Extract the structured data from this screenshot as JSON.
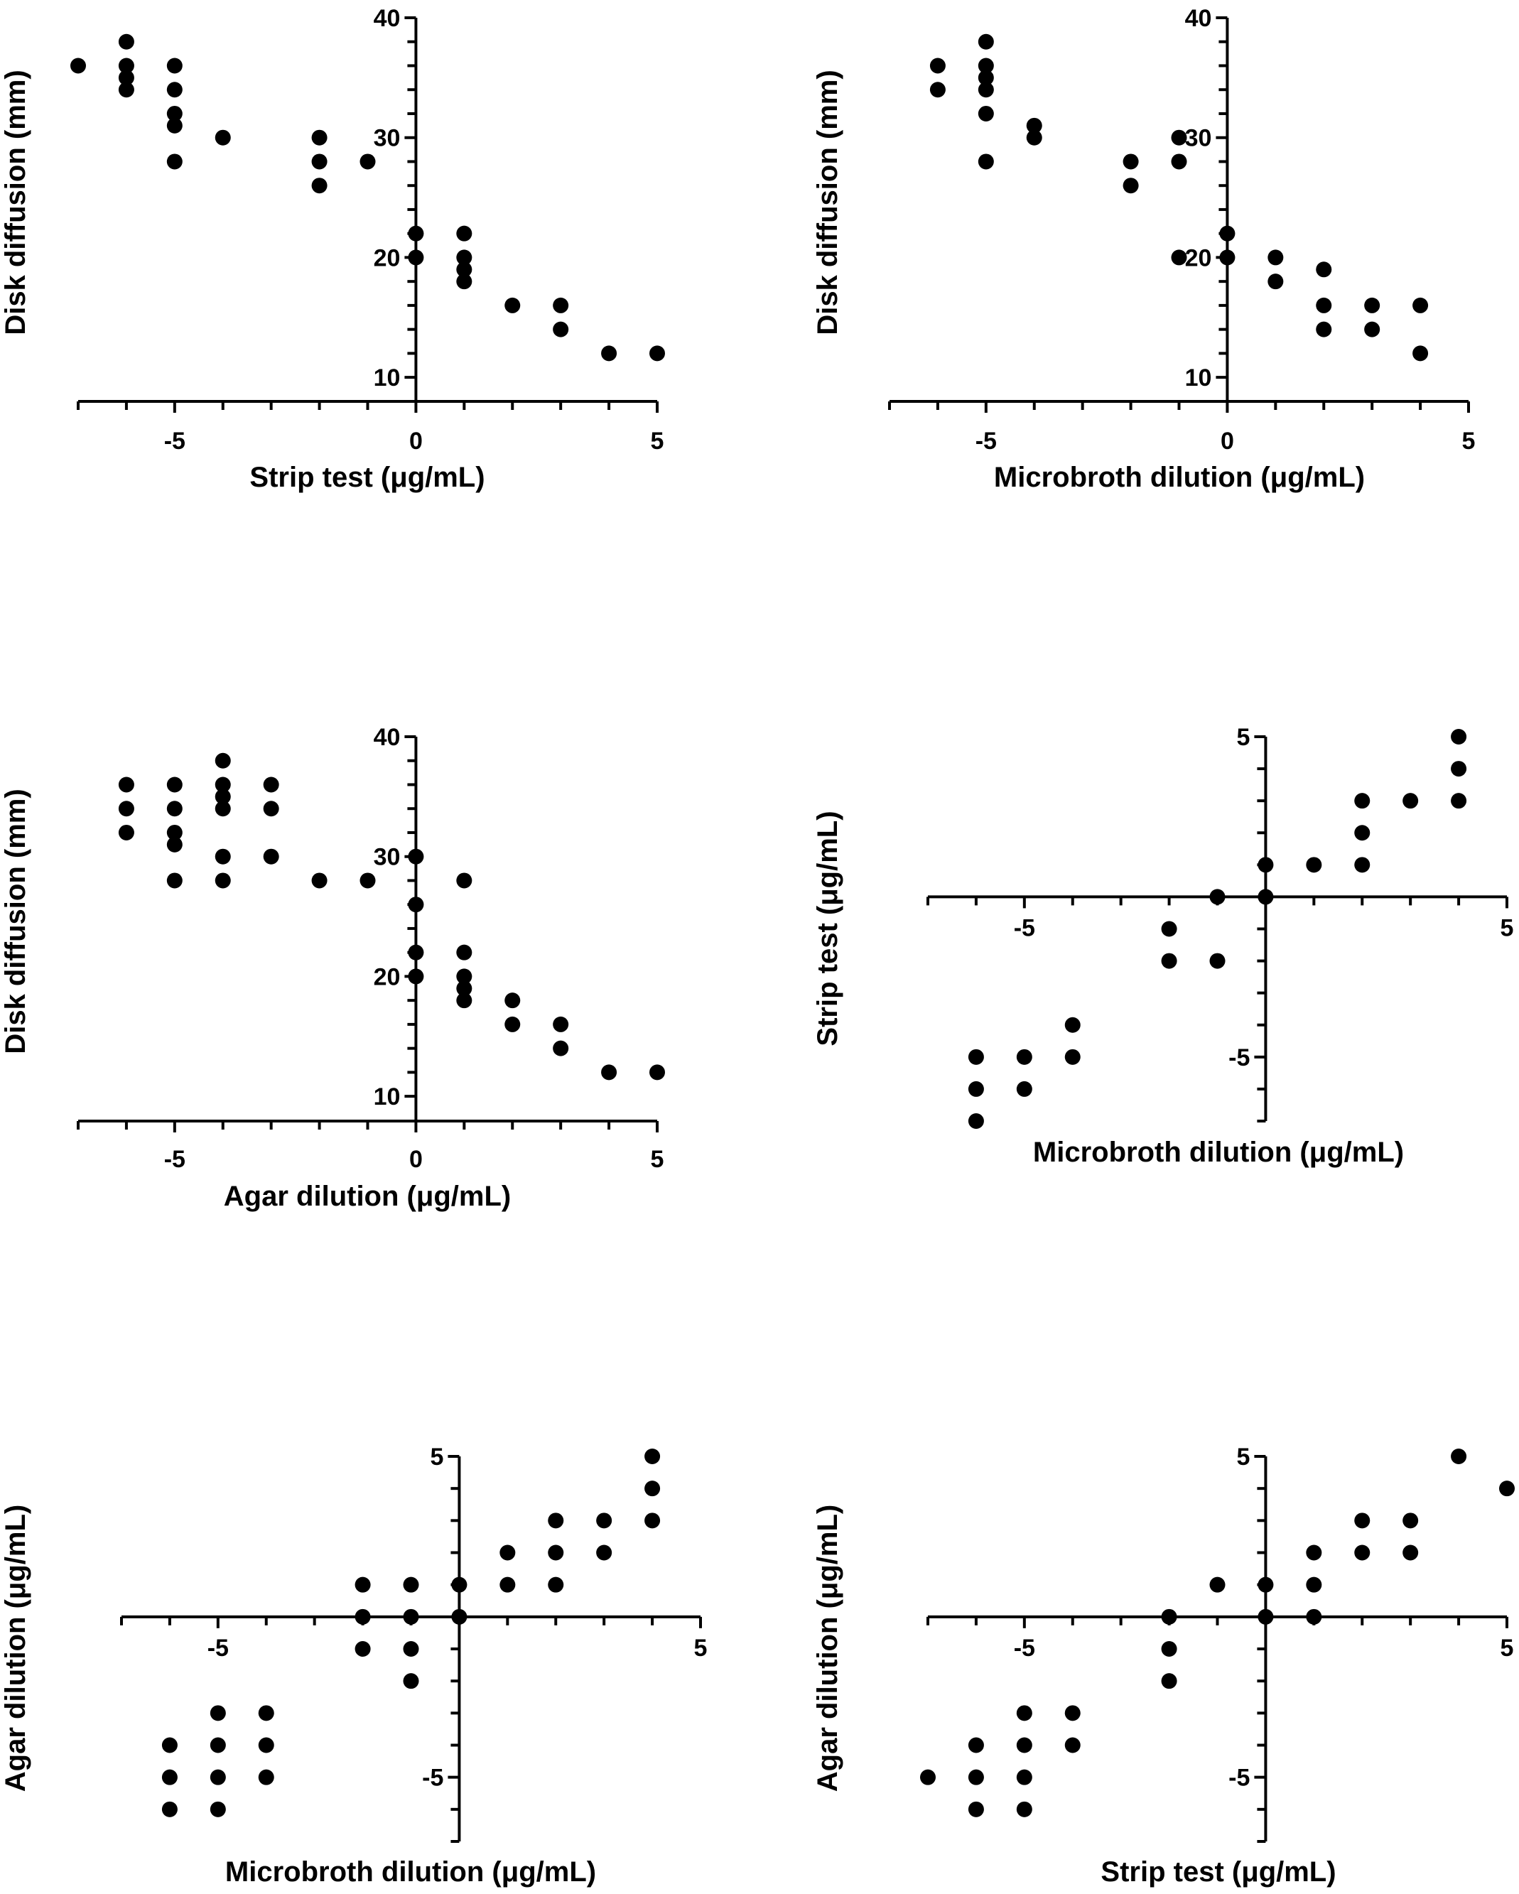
{
  "chart_data": [
    {
      "type": "scatter",
      "title": "",
      "xlabel": "Strip test (μg/mL)",
      "ylabel": "Disk diffusion (mm)",
      "xlim": [
        -7,
        5
      ],
      "ylim": [
        9,
        40
      ],
      "xticks": [
        -5,
        0,
        5
      ],
      "yticks": [
        10,
        20,
        30,
        40
      ],
      "points": [
        [
          -7,
          36
        ],
        [
          -6,
          38
        ],
        [
          -6,
          36
        ],
        [
          -6,
          35
        ],
        [
          -6,
          34
        ],
        [
          -5,
          36
        ],
        [
          -5,
          34
        ],
        [
          -5,
          32
        ],
        [
          -5,
          31
        ],
        [
          -5,
          28
        ],
        [
          -4,
          30
        ],
        [
          -2,
          30
        ],
        [
          -2,
          28
        ],
        [
          -2,
          26
        ],
        [
          -1,
          28
        ],
        [
          0,
          22
        ],
        [
          0,
          20
        ],
        [
          1,
          22
        ],
        [
          1,
          20
        ],
        [
          1,
          19
        ],
        [
          1,
          18
        ],
        [
          2,
          16
        ],
        [
          3,
          16
        ],
        [
          3,
          14
        ],
        [
          4,
          12
        ],
        [
          5,
          12
        ]
      ]
    },
    {
      "type": "scatter",
      "title": "",
      "xlabel": "Microbroth dilution (μg/mL)",
      "ylabel": "Disk diffusion (mm)",
      "xlim": [
        -7,
        5
      ],
      "ylim": [
        9,
        40
      ],
      "xticks": [
        -5,
        0,
        5
      ],
      "yticks": [
        10,
        20,
        30,
        40
      ],
      "points": [
        [
          -6,
          36
        ],
        [
          -6,
          34
        ],
        [
          -5,
          38
        ],
        [
          -5,
          36
        ],
        [
          -5,
          35
        ],
        [
          -5,
          34
        ],
        [
          -5,
          32
        ],
        [
          -5,
          28
        ],
        [
          -4,
          31
        ],
        [
          -4,
          30
        ],
        [
          -2,
          28
        ],
        [
          -2,
          26
        ],
        [
          -1,
          30
        ],
        [
          -1,
          28
        ],
        [
          -1,
          20
        ],
        [
          0,
          22
        ],
        [
          0,
          20
        ],
        [
          1,
          20
        ],
        [
          1,
          18
        ],
        [
          2,
          19
        ],
        [
          2,
          16
        ],
        [
          2,
          14
        ],
        [
          3,
          16
        ],
        [
          3,
          14
        ],
        [
          4,
          16
        ],
        [
          4,
          12
        ]
      ]
    },
    {
      "type": "scatter",
      "title": "",
      "xlabel": "Agar dilution (μg/mL)",
      "ylabel": "Disk diffusion (mm)",
      "xlim": [
        -7,
        5
      ],
      "ylim": [
        9,
        40
      ],
      "xticks": [
        -5,
        0,
        5
      ],
      "yticks": [
        10,
        20,
        30,
        40
      ],
      "points": [
        [
          -6,
          36
        ],
        [
          -6,
          34
        ],
        [
          -6,
          32
        ],
        [
          -5,
          36
        ],
        [
          -5,
          34
        ],
        [
          -5,
          32
        ],
        [
          -5,
          31
        ],
        [
          -5,
          28
        ],
        [
          -4,
          38
        ],
        [
          -4,
          36
        ],
        [
          -4,
          35
        ],
        [
          -4,
          34
        ],
        [
          -4,
          30
        ],
        [
          -4,
          28
        ],
        [
          -3,
          36
        ],
        [
          -3,
          34
        ],
        [
          -3,
          30
        ],
        [
          -2,
          28
        ],
        [
          -1,
          28
        ],
        [
          0,
          30
        ],
        [
          0,
          26
        ],
        [
          0,
          22
        ],
        [
          0,
          20
        ],
        [
          1,
          28
        ],
        [
          1,
          22
        ],
        [
          1,
          20
        ],
        [
          1,
          19
        ],
        [
          1,
          18
        ],
        [
          2,
          18
        ],
        [
          2,
          16
        ],
        [
          3,
          16
        ],
        [
          3,
          14
        ],
        [
          4,
          12
        ],
        [
          5,
          12
        ]
      ]
    },
    {
      "type": "scatter",
      "title": "",
      "xlabel": "Microbroth dilution (μg/mL)",
      "ylabel": "Strip test (μg/mL)",
      "xlim": [
        -7,
        5
      ],
      "ylim": [
        -7,
        5
      ],
      "xticks": [
        -5,
        5
      ],
      "yticks": [
        -5,
        5
      ],
      "points": [
        [
          -6,
          -5
        ],
        [
          -6,
          -6
        ],
        [
          -6,
          -7
        ],
        [
          -5,
          -5
        ],
        [
          -5,
          -6
        ],
        [
          -4,
          -4
        ],
        [
          -4,
          -5
        ],
        [
          -2,
          -1
        ],
        [
          -2,
          -2
        ],
        [
          -1,
          0
        ],
        [
          -1,
          -2
        ],
        [
          0,
          1
        ],
        [
          0,
          0
        ],
        [
          1,
          1
        ],
        [
          2,
          3
        ],
        [
          2,
          2
        ],
        [
          2,
          1
        ],
        [
          3,
          3
        ],
        [
          4,
          5
        ],
        [
          4,
          4
        ],
        [
          4,
          3
        ]
      ]
    },
    {
      "type": "scatter",
      "title": "",
      "xlabel": "Microbroth dilution (μg/mL)",
      "ylabel": "Agar dilution (μg/mL)",
      "xlim": [
        -7,
        5
      ],
      "ylim": [
        -7,
        5
      ],
      "xticks": [
        -5,
        5
      ],
      "yticks": [
        -5,
        5
      ],
      "points": [
        [
          -6,
          -4
        ],
        [
          -6,
          -5
        ],
        [
          -6,
          -6
        ],
        [
          -5,
          -3
        ],
        [
          -5,
          -4
        ],
        [
          -5,
          -5
        ],
        [
          -5,
          -6
        ],
        [
          -4,
          -3
        ],
        [
          -4,
          -4
        ],
        [
          -4,
          -5
        ],
        [
          -2,
          1
        ],
        [
          -2,
          0
        ],
        [
          -2,
          -1
        ],
        [
          -1,
          1
        ],
        [
          -1,
          0
        ],
        [
          -1,
          -1
        ],
        [
          -1,
          -2
        ],
        [
          0,
          1
        ],
        [
          0,
          0
        ],
        [
          1,
          2
        ],
        [
          1,
          1
        ],
        [
          2,
          3
        ],
        [
          2,
          2
        ],
        [
          2,
          1
        ],
        [
          3,
          3
        ],
        [
          3,
          2
        ],
        [
          4,
          5
        ],
        [
          4,
          4
        ],
        [
          4,
          3
        ]
      ]
    },
    {
      "type": "scatter",
      "title": "",
      "xlabel": "Strip test (μg/mL)",
      "ylabel": "Agar dilution (μg/mL)",
      "xlim": [
        -7,
        5
      ],
      "ylim": [
        -7,
        5
      ],
      "xticks": [
        -5,
        5
      ],
      "yticks": [
        -5,
        5
      ],
      "points": [
        [
          -7,
          -5
        ],
        [
          -6,
          -4
        ],
        [
          -6,
          -5
        ],
        [
          -6,
          -6
        ],
        [
          -5,
          -3
        ],
        [
          -5,
          -4
        ],
        [
          -5,
          -5
        ],
        [
          -5,
          -6
        ],
        [
          -4,
          -3
        ],
        [
          -4,
          -4
        ],
        [
          -2,
          0
        ],
        [
          -2,
          -1
        ],
        [
          -2,
          -2
        ],
        [
          -1,
          1
        ],
        [
          0,
          1
        ],
        [
          0,
          0
        ],
        [
          1,
          2
        ],
        [
          1,
          1
        ],
        [
          1,
          0
        ],
        [
          2,
          3
        ],
        [
          2,
          2
        ],
        [
          3,
          3
        ],
        [
          3,
          2
        ],
        [
          4,
          5
        ],
        [
          5,
          4
        ]
      ]
    }
  ]
}
